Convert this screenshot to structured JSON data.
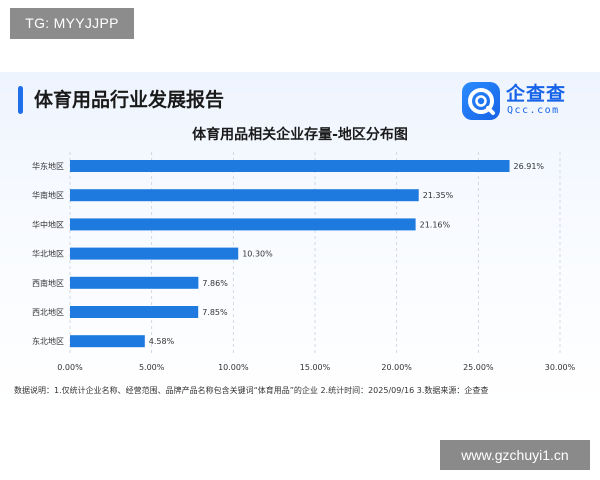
{
  "watermarks": {
    "top_left": "TG: MYYJJPP",
    "bottom_right": "www.gzchuyi1.cn"
  },
  "report": {
    "title": "体育用品行业发展报告"
  },
  "logo": {
    "name": "企查查",
    "domain": "Qcc.com",
    "icon": "qcc-logo-icon"
  },
  "colors": {
    "bar": "#1f7ae0",
    "accent": "#1f6fea",
    "grid": "#c8d0dc"
  },
  "chart_data": {
    "type": "bar",
    "orientation": "horizontal",
    "title": "体育用品相关企业存量-地区分布图",
    "categories": [
      "华东地区",
      "华南地区",
      "华中地区",
      "华北地区",
      "西南地区",
      "西北地区",
      "东北地区"
    ],
    "values": [
      26.91,
      21.35,
      21.16,
      10.3,
      7.86,
      7.85,
      4.58
    ],
    "value_labels": [
      "26.91%",
      "21.35%",
      "21.16%",
      "10.30%",
      "7.86%",
      "7.85%",
      "4.58%"
    ],
    "xlim": [
      0,
      30
    ],
    "xticks": [
      0,
      5,
      10,
      15,
      20,
      25,
      30
    ],
    "xtick_labels": [
      "0.00%",
      "5.00%",
      "10.00%",
      "15.00%",
      "20.00%",
      "25.00%",
      "30.00%"
    ],
    "grid": "vertical dashed",
    "legend": "none"
  },
  "footnote": "数据说明：1.仅统计企业名称、经营范围、品牌产品名称包含关键词“体育用品”的企业  2.统计时间：2025/09/16  3.数据来源：企查查"
}
